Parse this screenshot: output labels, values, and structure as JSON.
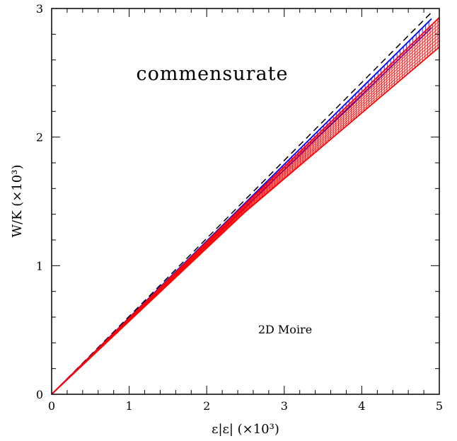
{
  "chart_data": {
    "type": "line",
    "title": "",
    "xlabel": "ε|ε| (×10³)",
    "ylabel": "W/K (×10³)",
    "xlim": [
      0,
      5
    ],
    "ylim": [
      0,
      3
    ],
    "x_ticks": [
      "0",
      "1",
      "2",
      "3",
      "4",
      "5"
    ],
    "y_ticks": [
      "0",
      "1",
      "2",
      "3"
    ],
    "grid": false,
    "annotations": [
      "commensurate",
      "2D Moire"
    ],
    "series": [
      {
        "color": "#000000",
        "style": "dashed",
        "x": [
          0,
          4.9
        ],
        "y": [
          0,
          2.97
        ]
      },
      {
        "color": "#0000ff",
        "style": "band-hatched",
        "x": [
          0,
          4.9
        ],
        "y_upper": [
          0,
          2.92
        ],
        "y_lower": [
          0,
          2.85
        ]
      },
      {
        "color": "#ff0000",
        "style": "band-crosshatched",
        "x": [
          0,
          2.5,
          5.0
        ],
        "y_upper": [
          0,
          1.48,
          2.93
        ],
        "y_lower": [
          0,
          1.42,
          2.7
        ]
      }
    ]
  }
}
